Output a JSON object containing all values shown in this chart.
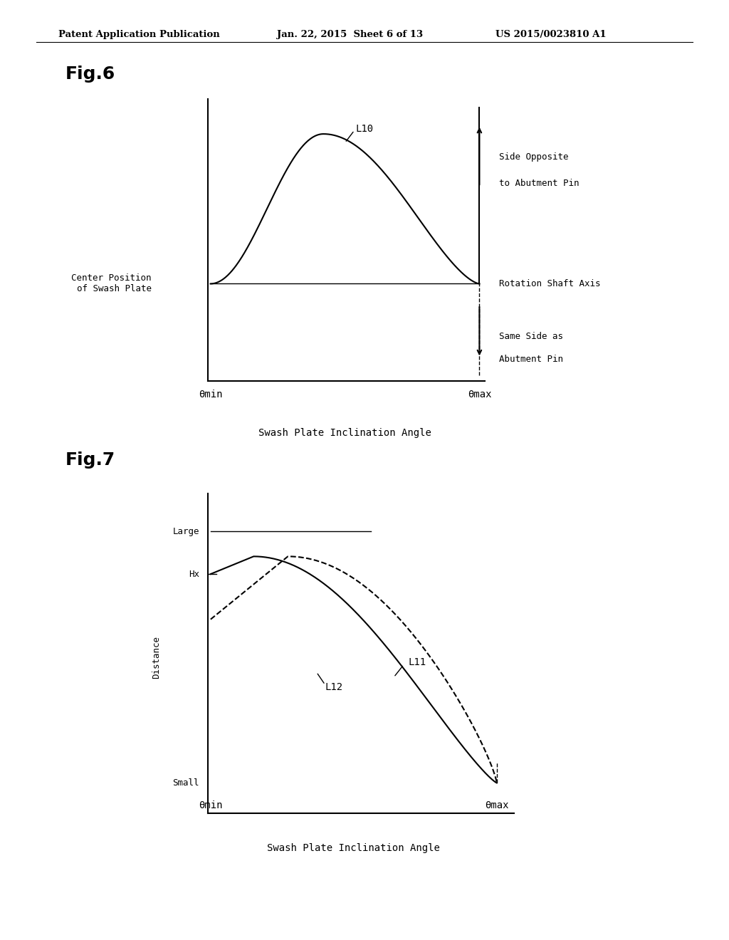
{
  "header_left": "Patent Application Publication",
  "header_mid": "Jan. 22, 2015  Sheet 6 of 13",
  "header_right": "US 2015/0023810 A1",
  "fig6_title": "Fig.6",
  "fig7_title": "Fig.7",
  "bg_color": "#ffffff",
  "text_color": "#000000",
  "line_color": "#000000",
  "fig6_xlabel": "Swash Plate Inclination Angle",
  "fig6_label_L10": "L10",
  "fig6_center_pos": "Center Position\nof Swash Plate",
  "fig6_side_opposite": "Side Opposite\nto Abutment Pin",
  "fig6_rotation_axis": "Rotation Shaft Axis",
  "fig6_same_side": "Same Side as\nAbutment Pin",
  "fig6_xmin_label": "θmin",
  "fig6_xmax_label": "θmax",
  "fig7_xlabel": "Swash Plate Inclination Angle",
  "fig7_ylabel_large": "Large",
  "fig7_ylabel_small": "Small",
  "fig7_ylabel_hx": "Hx",
  "fig7_ylabel_dist": "Distance",
  "fig7_label_L11": "L11",
  "fig7_label_L12": "L12",
  "fig7_xmin_label": "θmin",
  "fig7_xmax_label": "θmax"
}
